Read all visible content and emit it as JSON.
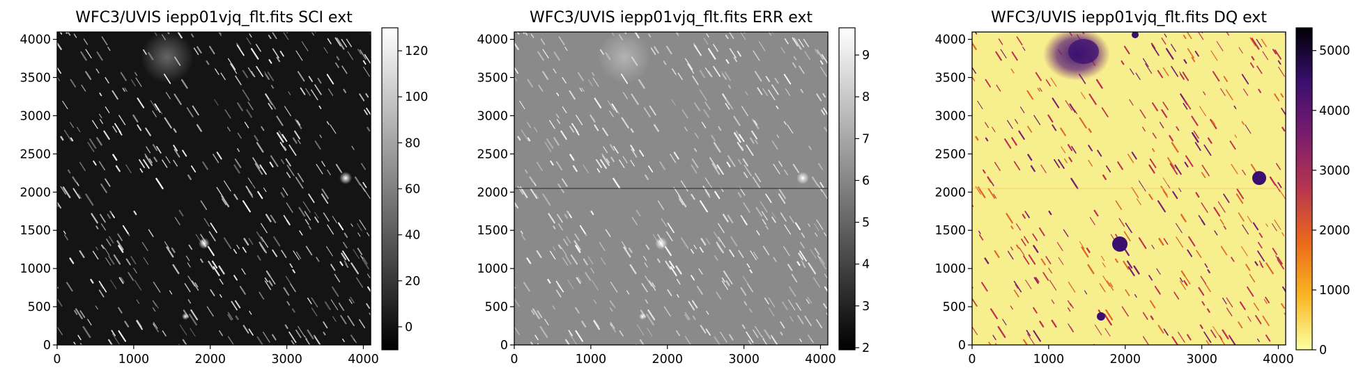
{
  "panels": [
    {
      "id": "sci",
      "title": "WFC3/UVIS iepp01vjq_flt.fits SCI ext",
      "xticks": [
        0,
        1000,
        2000,
        3000,
        4000
      ],
      "yticks": [
        0,
        500,
        1000,
        1500,
        2000,
        2500,
        3000,
        3500,
        4000
      ],
      "axis_range": [
        0,
        4096
      ],
      "cbar_range": [
        -10,
        130
      ],
      "cbar_ticks": [
        0,
        20,
        40,
        60,
        80,
        100,
        120
      ],
      "colormap": "gray",
      "cmap_stops": [
        "#000000",
        "#ffffff"
      ]
    },
    {
      "id": "err",
      "title": "WFC3/UVIS iepp01vjq_flt.fits ERR ext",
      "xticks": [
        0,
        1000,
        2000,
        3000,
        4000
      ],
      "yticks": [
        0,
        500,
        1000,
        1500,
        2000,
        2500,
        3000,
        3500,
        4000
      ],
      "axis_range": [
        0,
        4096
      ],
      "cbar_range": [
        1.95,
        9.65
      ],
      "cbar_ticks": [
        2,
        3,
        4,
        5,
        6,
        7,
        8,
        9
      ],
      "colormap": "gray",
      "cmap_stops": [
        "#000000",
        "#ffffff"
      ]
    },
    {
      "id": "dq",
      "title": "WFC3/UVIS iepp01vjq_flt.fits DQ ext",
      "xticks": [
        0,
        1000,
        2000,
        3000,
        4000
      ],
      "yticks": [
        0,
        500,
        1000,
        1500,
        2000,
        2500,
        3000,
        3500,
        4000
      ],
      "axis_range": [
        0,
        4096
      ],
      "cbar_range": [
        0,
        5380
      ],
      "cbar_ticks": [
        0,
        1000,
        2000,
        3000,
        4000,
        5000
      ],
      "colormap": "inferno_r",
      "cmap_stops": [
        "#fcffa4",
        "#f9b521",
        "#ec6b1a",
        "#b7364e",
        "#7a1c6d",
        "#3b0f70",
        "#000004"
      ]
    }
  ]
}
